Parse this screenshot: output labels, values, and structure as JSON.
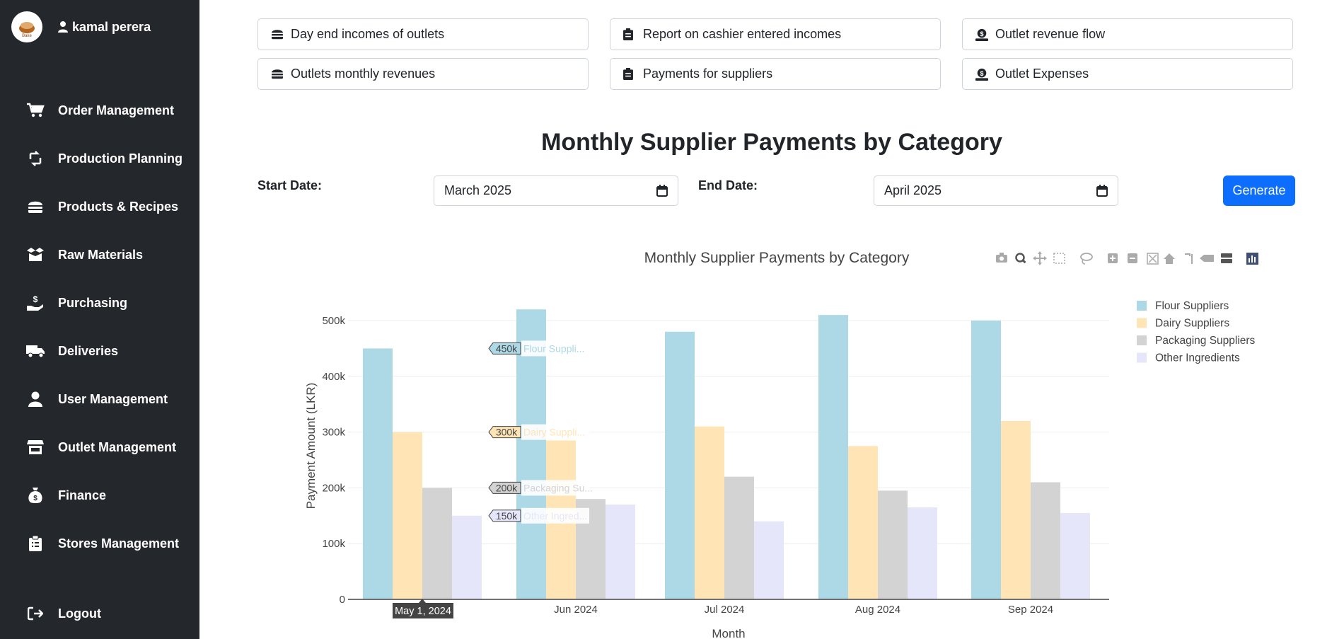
{
  "user": {
    "name": "kamal perera",
    "logo_text": "Bake"
  },
  "sidebar": {
    "items": [
      {
        "label": "Order Management",
        "icon": "cart-icon"
      },
      {
        "label": "Production Planning",
        "icon": "recycle-icon"
      },
      {
        "label": "Products & Recipes",
        "icon": "burger-icon"
      },
      {
        "label": "Raw Materials",
        "icon": "box-open-icon"
      },
      {
        "label": "Purchasing",
        "icon": "hand-dollar-icon"
      },
      {
        "label": "Deliveries",
        "icon": "truck-icon"
      },
      {
        "label": "User Management",
        "icon": "user-icon"
      },
      {
        "label": "Outlet Management",
        "icon": "store-icon"
      },
      {
        "label": "Finance",
        "icon": "money-bag-icon"
      },
      {
        "label": "Stores Management",
        "icon": "clipboard-icon"
      }
    ],
    "logout_label": "Logout"
  },
  "reports": {
    "day_end": "Day end incomes of outlets",
    "cashier": "Report on cashier entered incomes",
    "revenue_flow": "Outlet revenue flow",
    "monthly_rev": "Outlets monthly revenues",
    "suppliers": "Payments for suppliers",
    "expenses": "Outlet Expenses"
  },
  "page": {
    "title": "Monthly Supplier Payments by Category"
  },
  "filters": {
    "start_label": "Start Date:",
    "start_value": "March 2025",
    "end_label": "End Date:",
    "end_value": "April 2025",
    "generate_label": "Generate"
  },
  "colors": {
    "sidebar_bg": "#24272b",
    "accent": "#0d6efd",
    "flour": "#add8e6",
    "dairy": "#ffe4b5",
    "packaging": "#d3d3d3",
    "other": "#e6e6fa"
  },
  "chart_data": {
    "type": "bar",
    "title": "Monthly Supplier Payments by Category",
    "xlabel": "Month",
    "ylabel": "Payment Amount (LKR)",
    "categories": [
      "May 2024",
      "Jun 2024",
      "Jul 2024",
      "Aug 2024",
      "Sep 2024"
    ],
    "series": [
      {
        "name": "Flour Suppliers",
        "values": [
          450000,
          520000,
          480000,
          510000,
          500000
        ]
      },
      {
        "name": "Dairy Suppliers",
        "values": [
          300000,
          285000,
          310000,
          275000,
          320000
        ]
      },
      {
        "name": "Packaging Suppliers",
        "values": [
          200000,
          180000,
          220000,
          195000,
          210000
        ]
      },
      {
        "name": "Other Ingredients",
        "values": [
          150000,
          170000,
          140000,
          165000,
          155000
        ]
      }
    ],
    "yticks": [
      "0",
      "100k",
      "200k",
      "300k",
      "400k",
      "500k"
    ],
    "ylim": [
      0,
      520000
    ],
    "legend_position": "top-right",
    "hover": {
      "x_label": "May 1, 2024",
      "items": [
        {
          "value": "450k",
          "name": "Flour Suppli..."
        },
        {
          "value": "300k",
          "name": "Dairy Suppli..."
        },
        {
          "value": "200k",
          "name": "Packaging Su..."
        },
        {
          "value": "150k",
          "name": "Other Ingred..."
        }
      ]
    }
  }
}
